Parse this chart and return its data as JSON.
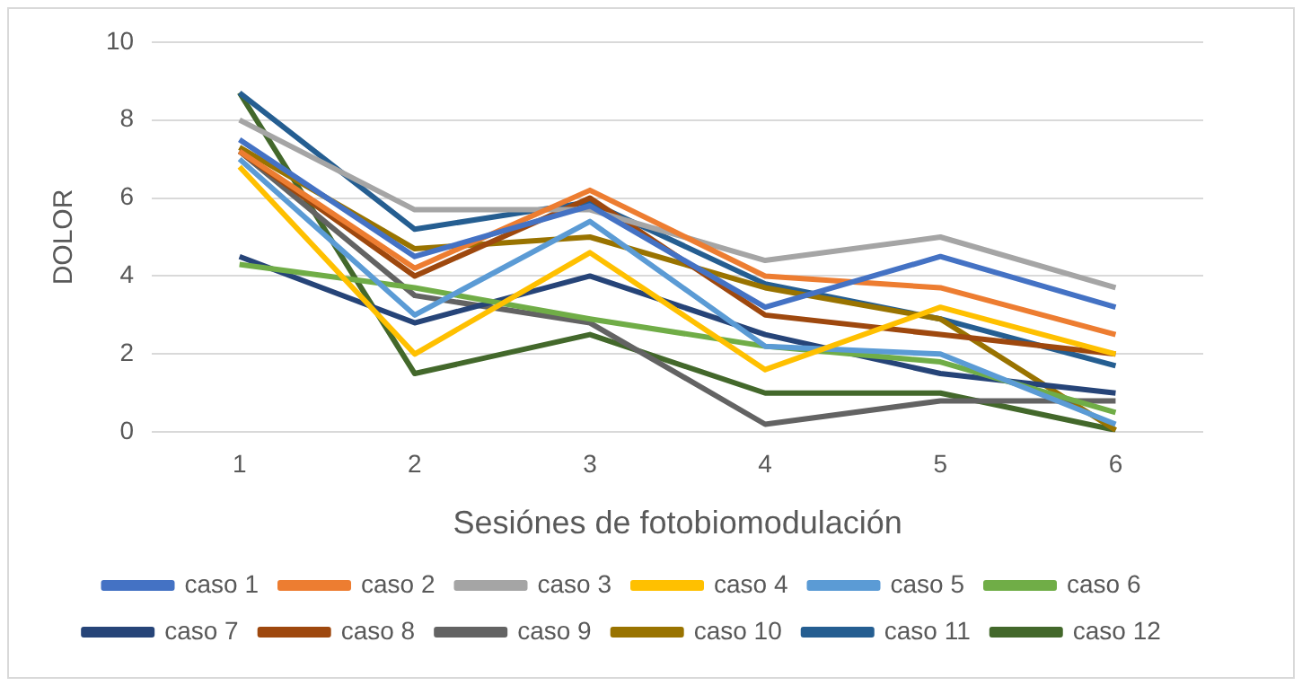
{
  "chart_data": {
    "type": "line",
    "xlabel": "Sesiónes de fotobiomodulación",
    "ylabel": "DOLOR",
    "categories": [
      "1",
      "2",
      "3",
      "4",
      "5",
      "6"
    ],
    "ylim": [
      0,
      10
    ],
    "yticks": [
      0,
      2,
      4,
      6,
      8,
      10
    ],
    "grid": "y",
    "legend": "bottom",
    "marker": "none",
    "line_style": "solid",
    "series": [
      {
        "name": "caso 1",
        "color": "#4472c4",
        "values": [
          7.5,
          4.5,
          5.8,
          3.2,
          4.5,
          3.2
        ]
      },
      {
        "name": "caso 2",
        "color": "#ed7d31",
        "values": [
          7.2,
          4.2,
          6.2,
          4.0,
          3.7,
          2.5
        ]
      },
      {
        "name": "caso 3",
        "color": "#a5a5a5",
        "values": [
          8.0,
          5.7,
          5.7,
          4.4,
          5.0,
          3.7
        ]
      },
      {
        "name": "caso 4",
        "color": "#ffc000",
        "values": [
          6.8,
          2.0,
          4.6,
          1.6,
          3.2,
          2.0
        ]
      },
      {
        "name": "caso 5",
        "color": "#5b9bd5",
        "values": [
          7.0,
          3.0,
          5.4,
          2.2,
          2.0,
          0.2
        ]
      },
      {
        "name": "caso 6",
        "color": "#70ad47",
        "values": [
          4.3,
          3.7,
          2.9,
          2.2,
          1.8,
          0.5
        ]
      },
      {
        "name": "caso 7",
        "color": "#264478",
        "values": [
          4.5,
          2.8,
          4.0,
          2.5,
          1.5,
          1.0
        ]
      },
      {
        "name": "caso 8",
        "color": "#9e480e",
        "values": [
          7.2,
          4.0,
          6.0,
          3.0,
          2.5,
          2.0
        ]
      },
      {
        "name": "caso 9",
        "color": "#636363",
        "values": [
          7.2,
          3.5,
          2.8,
          0.2,
          0.8,
          0.8
        ]
      },
      {
        "name": "caso 10",
        "color": "#997300",
        "values": [
          7.3,
          4.7,
          5.0,
          3.7,
          2.9,
          0.05
        ]
      },
      {
        "name": "caso 11",
        "color": "#255e91",
        "values": [
          8.7,
          5.2,
          5.9,
          3.8,
          2.9,
          1.7
        ]
      },
      {
        "name": "caso 12",
        "color": "#43682b",
        "values": [
          8.7,
          1.5,
          2.5,
          1.0,
          1.0,
          0.05
        ]
      }
    ]
  }
}
